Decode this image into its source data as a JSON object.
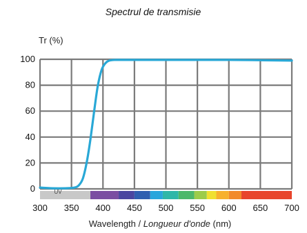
{
  "chart_data": {
    "type": "line",
    "title": "Spectrul de transmisie",
    "ylabel": "Tr (%)",
    "xlabel_main": "Wavelength / ",
    "xlabel_italic": "Longueur d'onde",
    "xlabel_unit": " (nm)",
    "xlim": [
      300,
      700
    ],
    "ylim": [
      0,
      100
    ],
    "xticks": [
      300,
      350,
      400,
      450,
      500,
      550,
      600,
      650,
      700
    ],
    "yticks": [
      0,
      20,
      40,
      60,
      80,
      100
    ],
    "grid": true,
    "band_label": "UV",
    "line_color": "#29a8d6",
    "series": [
      {
        "x": [
          300,
          320,
          340,
          355,
          362,
          368,
          374,
          380,
          386,
          392,
          398,
          404,
          410,
          420,
          440,
          500,
          600,
          700
        ],
        "y": [
          1,
          0.5,
          0.5,
          1,
          3,
          8,
          20,
          38,
          60,
          80,
          92,
          97,
          99,
          99.5,
          99.5,
          99.5,
          99.5,
          99
        ]
      }
    ],
    "spectrum_bands": [
      {
        "from": 300,
        "to": 380,
        "color": "#c8c8c8"
      },
      {
        "from": 380,
        "to": 425,
        "color": "#7b4ea2"
      },
      {
        "from": 425,
        "to": 450,
        "color": "#4a46a0"
      },
      {
        "from": 450,
        "to": 475,
        "color": "#2f5fb0"
      },
      {
        "from": 475,
        "to": 495,
        "color": "#28a6dc"
      },
      {
        "from": 495,
        "to": 520,
        "color": "#2fb7a8"
      },
      {
        "from": 520,
        "to": 545,
        "color": "#4cb86a"
      },
      {
        "from": 545,
        "to": 565,
        "color": "#9ccc4a"
      },
      {
        "from": 565,
        "to": 580,
        "color": "#f0e030"
      },
      {
        "from": 580,
        "to": 600,
        "color": "#f7b12e"
      },
      {
        "from": 600,
        "to": 620,
        "color": "#f28a2a"
      },
      {
        "from": 620,
        "to": 700,
        "color": "#e8452c"
      }
    ]
  }
}
